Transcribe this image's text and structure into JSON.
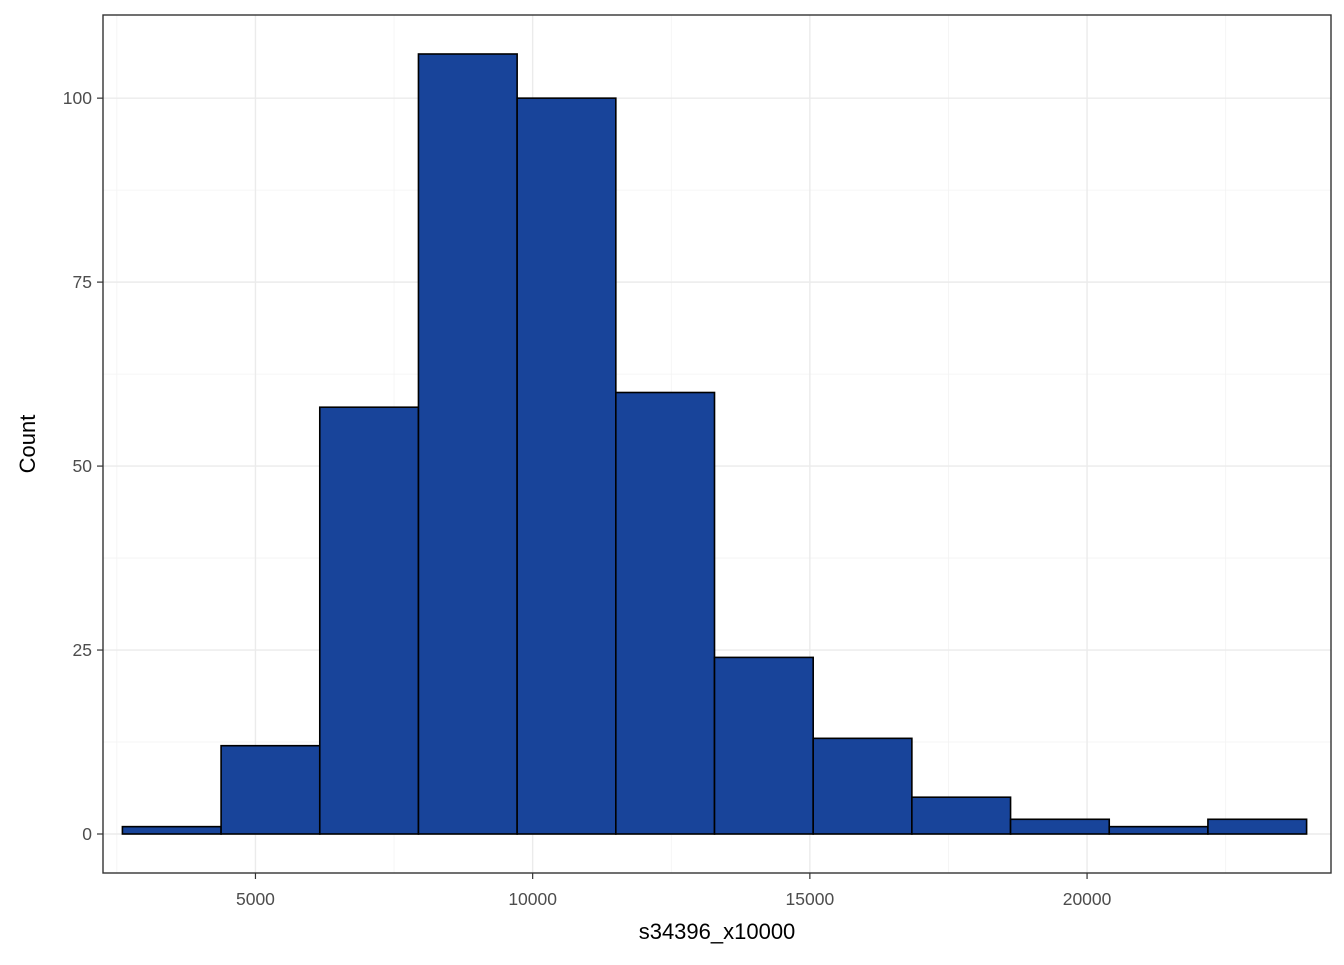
{
  "chart_data": {
    "type": "bar",
    "subtype": "histogram",
    "title": "",
    "xlabel": "s34396_x10000",
    "ylabel": "Count",
    "xlim": [
      2250,
      24400
    ],
    "ylim": [
      -5.3,
      111.3
    ],
    "x_ticks": [
      5000,
      10000,
      15000,
      20000
    ],
    "x_tick_labels": [
      "5000",
      "10000",
      "15000",
      "20000"
    ],
    "y_ticks": [
      0,
      25,
      50,
      75,
      100
    ],
    "y_tick_labels": [
      "0",
      "25",
      "50",
      "75",
      "100"
    ],
    "bins": [
      {
        "x0": 2600,
        "x1": 4380,
        "count": 1
      },
      {
        "x0": 4380,
        "x1": 6160,
        "count": 12
      },
      {
        "x0": 6160,
        "x1": 7940,
        "count": 58
      },
      {
        "x0": 7940,
        "x1": 9720,
        "count": 106
      },
      {
        "x0": 9720,
        "x1": 11500,
        "count": 100
      },
      {
        "x0": 11500,
        "x1": 13280,
        "count": 60
      },
      {
        "x0": 13280,
        "x1": 15060,
        "count": 24
      },
      {
        "x0": 15060,
        "x1": 16840,
        "count": 13
      },
      {
        "x0": 16840,
        "x1": 18620,
        "count": 5
      },
      {
        "x0": 18620,
        "x1": 20400,
        "count": 2
      },
      {
        "x0": 20400,
        "x1": 22180,
        "count": 1
      },
      {
        "x0": 22180,
        "x1": 23960,
        "count": 2
      }
    ],
    "grid": true,
    "legend": "none",
    "theme": "bw"
  },
  "colors": {
    "bar_fill": "#18449a",
    "bar_outline": "#000000",
    "panel_background": "#ffffff",
    "grid_major": "#ebebeb",
    "grid_minor": "#f3f3f3",
    "panel_border": "#333333",
    "tick_label": "#4d4d4d",
    "axis_title": "#000000"
  }
}
